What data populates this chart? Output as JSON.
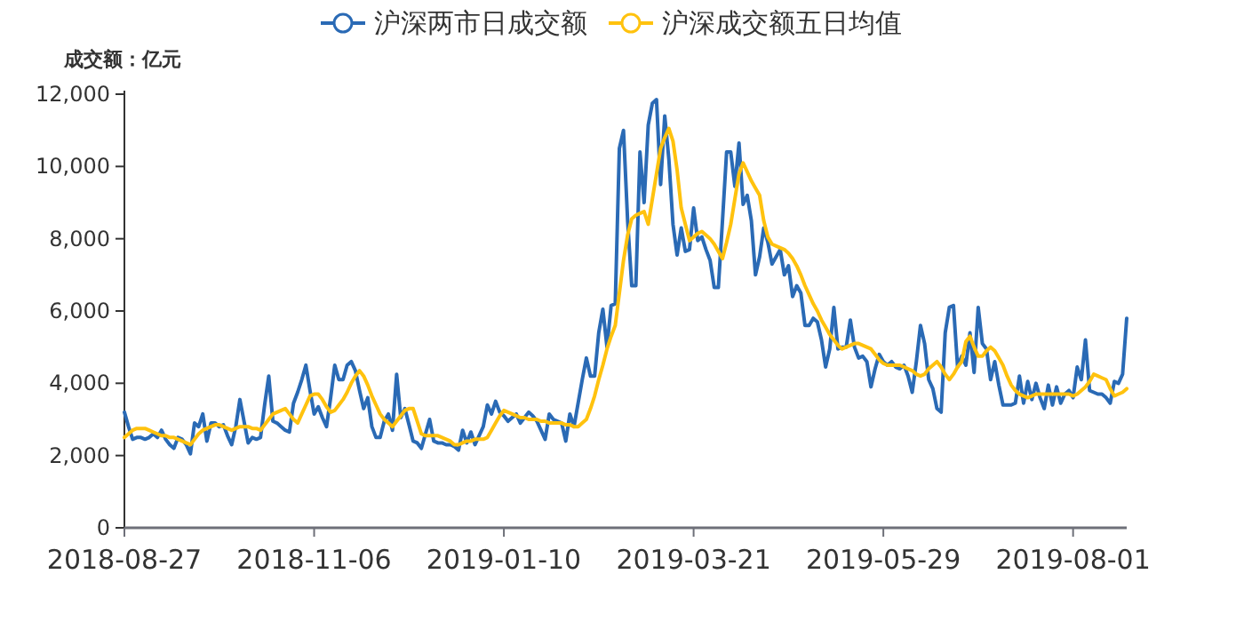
{
  "chart_data": {
    "type": "line",
    "ylabel": "成交额：亿元",
    "legend": "top",
    "grid": false,
    "marker": "none",
    "line_style": "solid",
    "categories": [
      "2018-08-27",
      null,
      null,
      null,
      null,
      null,
      null,
      null,
      null,
      null,
      null,
      null,
      null,
      null,
      null,
      null,
      null,
      null,
      null,
      null,
      null,
      null,
      null,
      null,
      null,
      null,
      null,
      null,
      null,
      null,
      null,
      null,
      null,
      null,
      null,
      null,
      null,
      null,
      null,
      null,
      null,
      null,
      null,
      null,
      null,
      null,
      "2018-11-06",
      null,
      null,
      null,
      null,
      null,
      null,
      null,
      null,
      null,
      null,
      null,
      null,
      null,
      null,
      null,
      null,
      null,
      null,
      null,
      null,
      null,
      null,
      null,
      null,
      null,
      null,
      null,
      null,
      null,
      null,
      null,
      null,
      null,
      null,
      null,
      null,
      null,
      null,
      null,
      null,
      null,
      null,
      null,
      null,
      null,
      "2019-01-10",
      null,
      null,
      null,
      null,
      null,
      null,
      null,
      null,
      null,
      null,
      null,
      null,
      null,
      null,
      null,
      null,
      null,
      null,
      null,
      null,
      null,
      null,
      null,
      null,
      null,
      null,
      null,
      null,
      null,
      null,
      null,
      null,
      null,
      null,
      null,
      null,
      null,
      null,
      null,
      null,
      null,
      null,
      null,
      null,
      null,
      "2019-03-21",
      null,
      null,
      null,
      null,
      null,
      null,
      null,
      null,
      null,
      null,
      null,
      null,
      null,
      null,
      null,
      null,
      null,
      null,
      null,
      null,
      null,
      null,
      null,
      null,
      null,
      null,
      null,
      null,
      null,
      null,
      null,
      null,
      null,
      null,
      null,
      null,
      null,
      null,
      null,
      null,
      null,
      null,
      null,
      null,
      null,
      "2019-05-29",
      null,
      null,
      null,
      null,
      null,
      null,
      null,
      null,
      null,
      null,
      null,
      null,
      null,
      null,
      null,
      null,
      null,
      null,
      null,
      null,
      null,
      null,
      null,
      null,
      null,
      null,
      null,
      null,
      null,
      null,
      null,
      null,
      null,
      null,
      null,
      null,
      null,
      null,
      null,
      null,
      null,
      null,
      null,
      null,
      null,
      "2019-08-01",
      null,
      null,
      null,
      null,
      null,
      null,
      null,
      null,
      null,
      null,
      null,
      null,
      null
    ],
    "ylim": [
      0,
      12000
    ],
    "yticks": [
      0,
      {
        "value": 2000,
        "label": "2,000"
      },
      {
        "value": 4000,
        "label": "4,000"
      },
      {
        "value": 6000,
        "label": "6,000"
      },
      {
        "value": 8000,
        "label": "8,000"
      },
      {
        "value": 10000,
        "label": "10,000"
      },
      {
        "value": 12000,
        "label": "12,000"
      }
    ],
    "series": [
      {
        "name": "沪深两市日成交额",
        "color": "#2a6ab5",
        "values": [
          3200,
          2800,
          2450,
          2500,
          2500,
          2450,
          2500,
          2600,
          2500,
          2700,
          2450,
          2300,
          2200,
          2500,
          2450,
          2300,
          2050,
          2900,
          2800,
          3150,
          2400,
          2900,
          2900,
          2800,
          2850,
          2550,
          2300,
          2800,
          3550,
          2950,
          2350,
          2500,
          2450,
          2500,
          3400,
          4200,
          2950,
          2900,
          2800,
          2700,
          2650,
          3450,
          3750,
          4100,
          4500,
          3800,
          3150,
          3350,
          3050,
          2800,
          3600,
          4500,
          4100,
          4100,
          4500,
          4600,
          4350,
          3800,
          3300,
          3600,
          2800,
          2500,
          2500,
          2950,
          3150,
          2700,
          4250,
          3050,
          3300,
          2850,
          2400,
          2350,
          2200,
          2600,
          3000,
          2400,
          2350,
          2350,
          2300,
          2300,
          2250,
          2150,
          2700,
          2350,
          2650,
          2300,
          2550,
          2800,
          3400,
          3150,
          3500,
          3200,
          3100,
          2950,
          3050,
          3150,
          2900,
          3050,
          3200,
          3100,
          2950,
          2700,
          2450,
          3150,
          3000,
          2950,
          2900,
          2400,
          3150,
          2800,
          3450,
          4100,
          4700,
          4200,
          4200,
          5400,
          6050,
          5000,
          6150,
          6200,
          10500,
          11000,
          8500,
          6700,
          6700,
          10400,
          9000,
          11150,
          11750,
          11850,
          9500,
          11400,
          10200,
          8400,
          7550,
          8300,
          7650,
          7700,
          8850,
          7950,
          8050,
          7700,
          7400,
          6650,
          6650,
          8500,
          10400,
          10400,
          9450,
          10650,
          8950,
          9200,
          8500,
          7000,
          7500,
          8300,
          7900,
          7300,
          7500,
          7700,
          7000,
          7250,
          6400,
          6700,
          6500,
          5600,
          5600,
          5800,
          5700,
          5200,
          4450,
          4950,
          6100,
          4950,
          5000,
          5000,
          5750,
          5000,
          4700,
          4750,
          4600,
          3900,
          4400,
          4800,
          4600,
          4500,
          4600,
          4450,
          4400,
          4500,
          4200,
          3750,
          4600,
          5600,
          5100,
          4100,
          3850,
          3300,
          3200,
          5400,
          6100,
          6150,
          4450,
          4750,
          4500,
          5400,
          4300,
          6100,
          5100,
          4950,
          4100,
          4600,
          3950,
          3400,
          3400,
          3400,
          3450,
          4200,
          3450,
          4050,
          3550,
          4000,
          3600,
          3300,
          3950,
          3400,
          3900,
          3450,
          3700,
          3800,
          3600,
          4450,
          4100,
          5200,
          3800,
          3750,
          3700,
          3700,
          3600,
          3450,
          4050,
          4000,
          4250,
          5800
        ]
      },
      {
        "name": "沪深成交额五日均值",
        "color": "#ffc20e",
        "values": [
          2500,
          2600,
          2700,
          2750,
          2750,
          2750,
          2700,
          2650,
          2600,
          2550,
          2550,
          2500,
          2500,
          2450,
          2400,
          2350,
          2300,
          2450,
          2600,
          2700,
          2750,
          2800,
          2850,
          2850,
          2800,
          2750,
          2700,
          2750,
          2800,
          2800,
          2800,
          2750,
          2750,
          2700,
          2850,
          3000,
          3150,
          3200,
          3250,
          3300,
          3150,
          3000,
          2900,
          3150,
          3400,
          3650,
          3700,
          3700,
          3550,
          3350,
          3200,
          3250,
          3400,
          3550,
          3750,
          4000,
          4200,
          4350,
          4200,
          3950,
          3650,
          3400,
          3150,
          3000,
          2900,
          2800,
          2950,
          3100,
          3250,
          3300,
          3300,
          2950,
          2600,
          2550,
          2550,
          2550,
          2550,
          2500,
          2450,
          2400,
          2300,
          2300,
          2350,
          2400,
          2400,
          2450,
          2450,
          2450,
          2500,
          2700,
          2900,
          3100,
          3250,
          3200,
          3150,
          3100,
          3050,
          3050,
          3000,
          3000,
          3000,
          2950,
          2950,
          2900,
          2900,
          2900,
          2900,
          2850,
          2850,
          2800,
          2800,
          2900,
          3000,
          3300,
          3650,
          4100,
          4500,
          4950,
          5300,
          5600,
          6500,
          7400,
          8100,
          8550,
          8650,
          8700,
          8750,
          8400,
          9100,
          9800,
          10500,
          10800,
          11050,
          10700,
          9900,
          8850,
          8400,
          7950,
          8050,
          8150,
          8200,
          8100,
          8000,
          7850,
          7650,
          7450,
          7900,
          8400,
          9100,
          9800,
          10100,
          9850,
          9600,
          9400,
          9200,
          8500,
          8050,
          7850,
          7800,
          7750,
          7700,
          7600,
          7450,
          7250,
          7000,
          6700,
          6450,
          6200,
          6000,
          5750,
          5550,
          5350,
          5200,
          5050,
          4950,
          5000,
          5050,
          5100,
          5100,
          5050,
          5000,
          4950,
          4800,
          4650,
          4550,
          4500,
          4500,
          4500,
          4500,
          4450,
          4400,
          4350,
          4250,
          4200,
          4250,
          4400,
          4500,
          4600,
          4450,
          4250,
          4100,
          4250,
          4450,
          4600,
          5150,
          5300,
          5000,
          4750,
          4750,
          4900,
          5000,
          4900,
          4700,
          4500,
          4200,
          3950,
          3800,
          3700,
          3650,
          3600,
          3650,
          3700,
          3700,
          3700,
          3700,
          3700,
          3700,
          3700,
          3700,
          3700,
          3650,
          3700,
          3800,
          3900,
          4050,
          4250,
          4200,
          4150,
          4100,
          3850,
          3650,
          3700,
          3750,
          3850
        ]
      }
    ]
  }
}
